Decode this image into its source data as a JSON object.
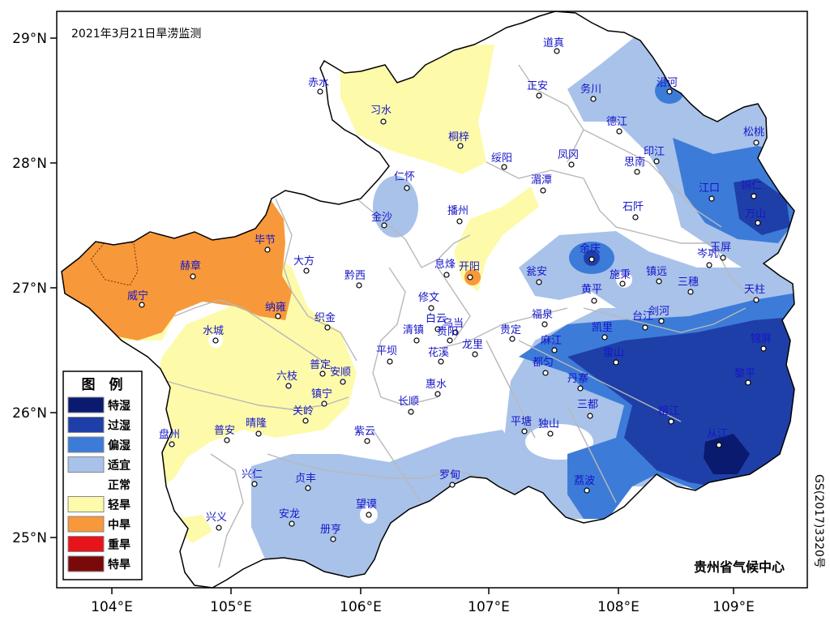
{
  "title": "2021年3月21日旱涝监测",
  "credit": "贵州省气候中心",
  "approval_number": "GS(2017)3320号",
  "lat_labels": [
    "29°N",
    "28°N",
    "27°N",
    "26°N",
    "25°N"
  ],
  "lon_labels": [
    "104°E",
    "105°E",
    "106°E",
    "107°E",
    "108°E",
    "109°E"
  ],
  "legend": {
    "title": "图　例",
    "items": [
      {
        "label": "特湿",
        "color": "#0a1a6e"
      },
      {
        "label": "过湿",
        "color": "#1f3fa8"
      },
      {
        "label": "偏湿",
        "color": "#3d7bd8"
      },
      {
        "label": "适宜",
        "color": "#a8c2ea"
      },
      {
        "label": "正常",
        "color": "#ffffff"
      },
      {
        "label": "轻旱",
        "color": "#fdfaaa"
      },
      {
        "label": "中旱",
        "color": "#f7993a"
      },
      {
        "label": "重旱",
        "color": "#e8141c"
      },
      {
        "label": "特旱",
        "color": "#7a0a0a"
      }
    ]
  },
  "cities": [
    "赤水",
    "习水",
    "桐梓",
    "道真",
    "正安",
    "务川",
    "沿河",
    "松桃",
    "德江",
    "印江",
    "思南",
    "绥阳",
    "凤冈",
    "湄潭",
    "仁怀",
    "金沙",
    "播州",
    "石阡",
    "江口",
    "铜仁",
    "万山",
    "毕节",
    "赫章",
    "大方",
    "威宁",
    "黔西",
    "纳雍",
    "织金",
    "水城",
    "息烽",
    "开阳",
    "修文",
    "白云",
    "乌当",
    "清镇",
    "贵阳",
    "花溪",
    "龙里",
    "贵定",
    "平坝",
    "余庆",
    "瓮安",
    "施秉",
    "镇远",
    "三穗",
    "岑巩",
    "玉屏",
    "黄平",
    "福泉",
    "凯里",
    "台江",
    "剑河",
    "天柱",
    "麻江",
    "雷山",
    "都匀",
    "丹寨",
    "锦屏",
    "黎平",
    "六枝",
    "普定",
    "安顺",
    "镇宁",
    "关岭",
    "惠水",
    "长顺",
    "盘州",
    "普安",
    "晴隆",
    "紫云",
    "平塘",
    "独山",
    "三都",
    "榕江",
    "从江",
    "兴仁",
    "贞丰",
    "罗甸",
    "荔波",
    "兴义",
    "安龙",
    "册亨",
    "望谟"
  ]
}
